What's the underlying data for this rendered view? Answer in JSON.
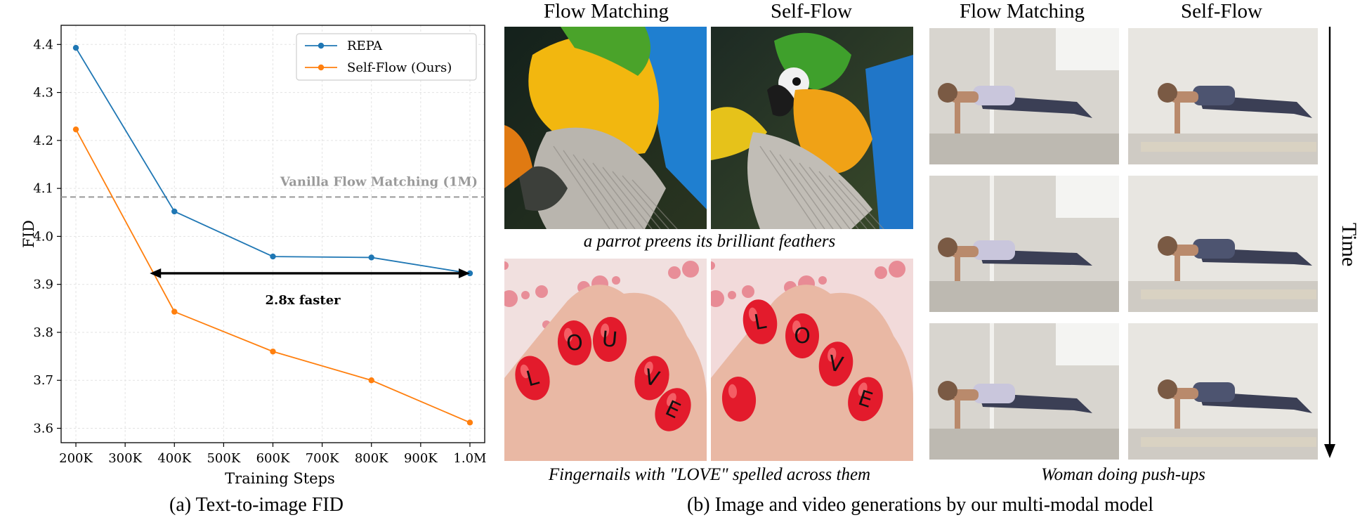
{
  "chart_data": {
    "type": "line",
    "subcaption": "(a) Text-to-image FID",
    "xlabel": "Training Steps",
    "ylabel": "FID",
    "x_ticks": [
      "200K",
      "300K",
      "400K",
      "500K",
      "600K",
      "700K",
      "800K",
      "900K",
      "1.0M"
    ],
    "y_ticks": [
      "3.6",
      "3.7",
      "3.8",
      "3.9",
      "4.0",
      "4.1",
      "4.2",
      "4.3",
      "4.4"
    ],
    "xlim": [
      170000,
      1030000
    ],
    "ylim": [
      3.57,
      4.44
    ],
    "grid": true,
    "legend_position": "top-right",
    "series": [
      {
        "name": "REPA",
        "color": "#1f77b4",
        "points": [
          [
            200000,
            4.393
          ],
          [
            400000,
            4.052
          ],
          [
            600000,
            3.958
          ],
          [
            800000,
            3.956
          ],
          [
            1000000,
            3.923
          ]
        ]
      },
      {
        "name": "Self-Flow (Ours)",
        "color": "#ff7f0e",
        "points": [
          [
            200000,
            4.223
          ],
          [
            400000,
            3.843
          ],
          [
            600000,
            3.76
          ],
          [
            800000,
            3.7
          ],
          [
            1000000,
            3.612
          ]
        ]
      }
    ],
    "reference_line": {
      "label": "Vanilla Flow Matching (1M)",
      "y": 4.082,
      "color": "#999999"
    },
    "annotation": {
      "text": "2.8x faster",
      "x_from": 350000,
      "x_to": 1000000,
      "y": 3.923
    }
  },
  "gallery": {
    "subcaption": "(b) Image and video generations by our multi-modal model",
    "image_headers": [
      "Flow Matching",
      "Self-Flow"
    ],
    "video_headers": [
      "Flow Matching",
      "Self-Flow"
    ],
    "image_captions": [
      "a parrot preens its brilliant feathers",
      "Fingernails with \"LOVE\" spelled across them"
    ],
    "video_caption": "Woman doing push-ups",
    "time_label": "Time",
    "tiles": [
      {
        "name": "parrot-flow-matching",
        "kind": "parrot",
        "variant": "fm"
      },
      {
        "name": "parrot-self-flow",
        "kind": "parrot",
        "variant": "sf"
      },
      {
        "name": "nails-flow-matching",
        "kind": "nails",
        "variant": "fm"
      },
      {
        "name": "nails-self-flow",
        "kind": "nails",
        "variant": "sf"
      },
      {
        "name": "pushup-flow-matching-1",
        "kind": "pushup",
        "variant": "fm"
      },
      {
        "name": "pushup-self-flow-1",
        "kind": "pushup",
        "variant": "sf"
      },
      {
        "name": "pushup-flow-matching-2",
        "kind": "pushup",
        "variant": "fm"
      },
      {
        "name": "pushup-self-flow-2",
        "kind": "pushup",
        "variant": "sf"
      },
      {
        "name": "pushup-flow-matching-3",
        "kind": "pushup",
        "variant": "fm"
      },
      {
        "name": "pushup-self-flow-3",
        "kind": "pushup",
        "variant": "sf"
      }
    ],
    "nail_letters_fm": [
      "L",
      "O",
      "U",
      "V",
      "E"
    ],
    "nail_letters_sf": [
      "L",
      "O",
      "V",
      "E"
    ]
  }
}
